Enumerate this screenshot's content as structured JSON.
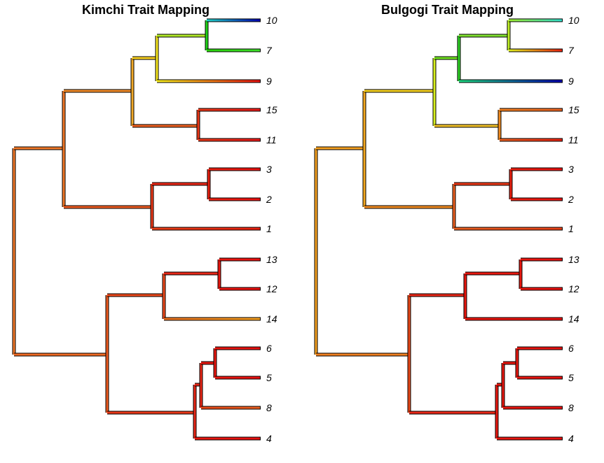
{
  "panels": [
    {
      "title": "Kimchi Trait Mapping",
      "tips": [
        {
          "label": "10",
          "color_near": "#22d5c8",
          "color_tip": "#0000b0"
        },
        {
          "label": "7",
          "color_near": "#2ad40c",
          "color_tip": "#3ee02a"
        },
        {
          "label": "9",
          "color_near": "#f8f020",
          "color_tip": "#e81010"
        },
        {
          "label": "15",
          "color_near": "#e83818",
          "color_tip": "#e81818"
        },
        {
          "label": "11",
          "color_near": "#e83818",
          "color_tip": "#e81818"
        },
        {
          "label": "3",
          "color_near": "#e82010",
          "color_tip": "#e81010"
        },
        {
          "label": "2",
          "color_near": "#e82010",
          "color_tip": "#e81010"
        },
        {
          "label": "1",
          "color_near": "#e84018",
          "color_tip": "#e82010"
        },
        {
          "label": "13",
          "color_near": "#e81810",
          "color_tip": "#e81010"
        },
        {
          "label": "12",
          "color_near": "#e81810",
          "color_tip": "#e81010"
        },
        {
          "label": "14",
          "color_near": "#e87020",
          "color_tip": "#f4a020"
        },
        {
          "label": "6",
          "color_near": "#e81810",
          "color_tip": "#e81010"
        },
        {
          "label": "5",
          "color_near": "#e81810",
          "color_tip": "#e81010"
        },
        {
          "label": "8",
          "color_near": "#e84818",
          "color_tip": "#e86020"
        },
        {
          "label": "4",
          "color_near": "#e81810",
          "color_tip": "#e81010"
        }
      ]
    },
    {
      "title": "Bulgogi Trait Mapping",
      "tips": [
        {
          "label": "10",
          "color_near": "#a0f030",
          "color_tip": "#30e0d0"
        },
        {
          "label": "7",
          "color_near": "#e0f020",
          "color_tip": "#e82010"
        },
        {
          "label": "9",
          "color_near": "#20d880",
          "color_tip": "#0000b0"
        },
        {
          "label": "15",
          "color_near": "#f08020",
          "color_tip": "#e86020"
        },
        {
          "label": "11",
          "color_near": "#e86020",
          "color_tip": "#e82010"
        },
        {
          "label": "3",
          "color_near": "#e82010",
          "color_tip": "#e81010"
        },
        {
          "label": "2",
          "color_near": "#e82010",
          "color_tip": "#e81010"
        },
        {
          "label": "1",
          "color_near": "#e86020",
          "color_tip": "#e84018"
        },
        {
          "label": "13",
          "color_near": "#e81810",
          "color_tip": "#e81010"
        },
        {
          "label": "12",
          "color_near": "#e81810",
          "color_tip": "#e81010"
        },
        {
          "label": "14",
          "color_near": "#e81810",
          "color_tip": "#e81010"
        },
        {
          "label": "6",
          "color_near": "#e81810",
          "color_tip": "#e81010"
        },
        {
          "label": "5",
          "color_near": "#e81810",
          "color_tip": "#e81010"
        },
        {
          "label": "8",
          "color_near": "#e81810",
          "color_tip": "#e81010"
        },
        {
          "label": "4",
          "color_near": "#e81810",
          "color_tip": "#e81010"
        }
      ]
    }
  ]
}
